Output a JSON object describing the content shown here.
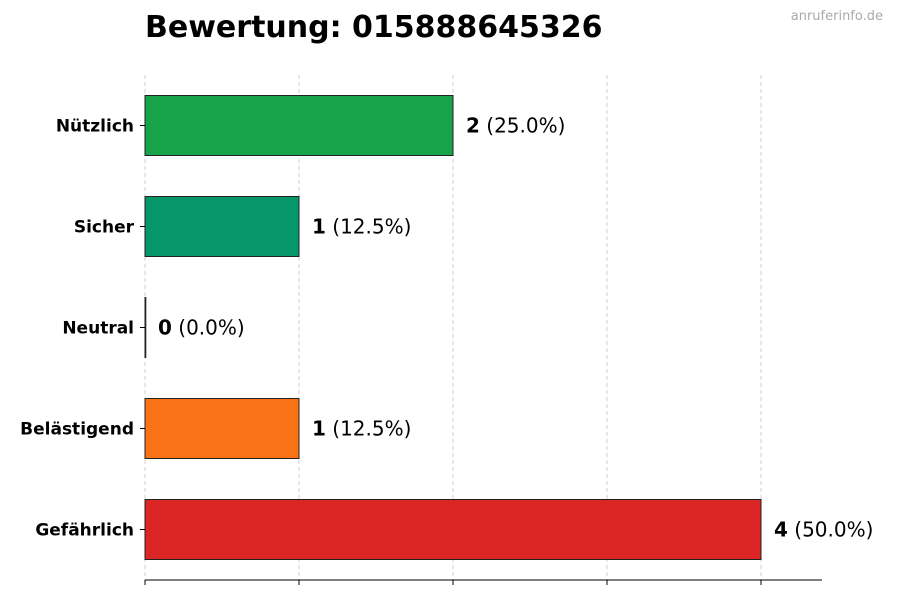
{
  "watermark": "anruferinfo.de",
  "chart_data": {
    "type": "bar",
    "orientation": "horizontal",
    "title": "Bewertung: 015888645326",
    "xlabel": "",
    "ylabel": "",
    "xlim": [
      0,
      4.4
    ],
    "grid": "vertical dashed",
    "categories": [
      "Nützlich",
      "Sicher",
      "Neutral",
      "Belästigend",
      "Gefährlich"
    ],
    "values": [
      2,
      1,
      0,
      1,
      4
    ],
    "percent_labels": [
      "(25.0%)",
      "(12.5%)",
      "(0.0%)",
      "(12.5%)",
      "(50.0%)"
    ],
    "colors": [
      "#16a34a",
      "#059669",
      "#6b7280",
      "#f97316",
      "#dc2626"
    ]
  }
}
